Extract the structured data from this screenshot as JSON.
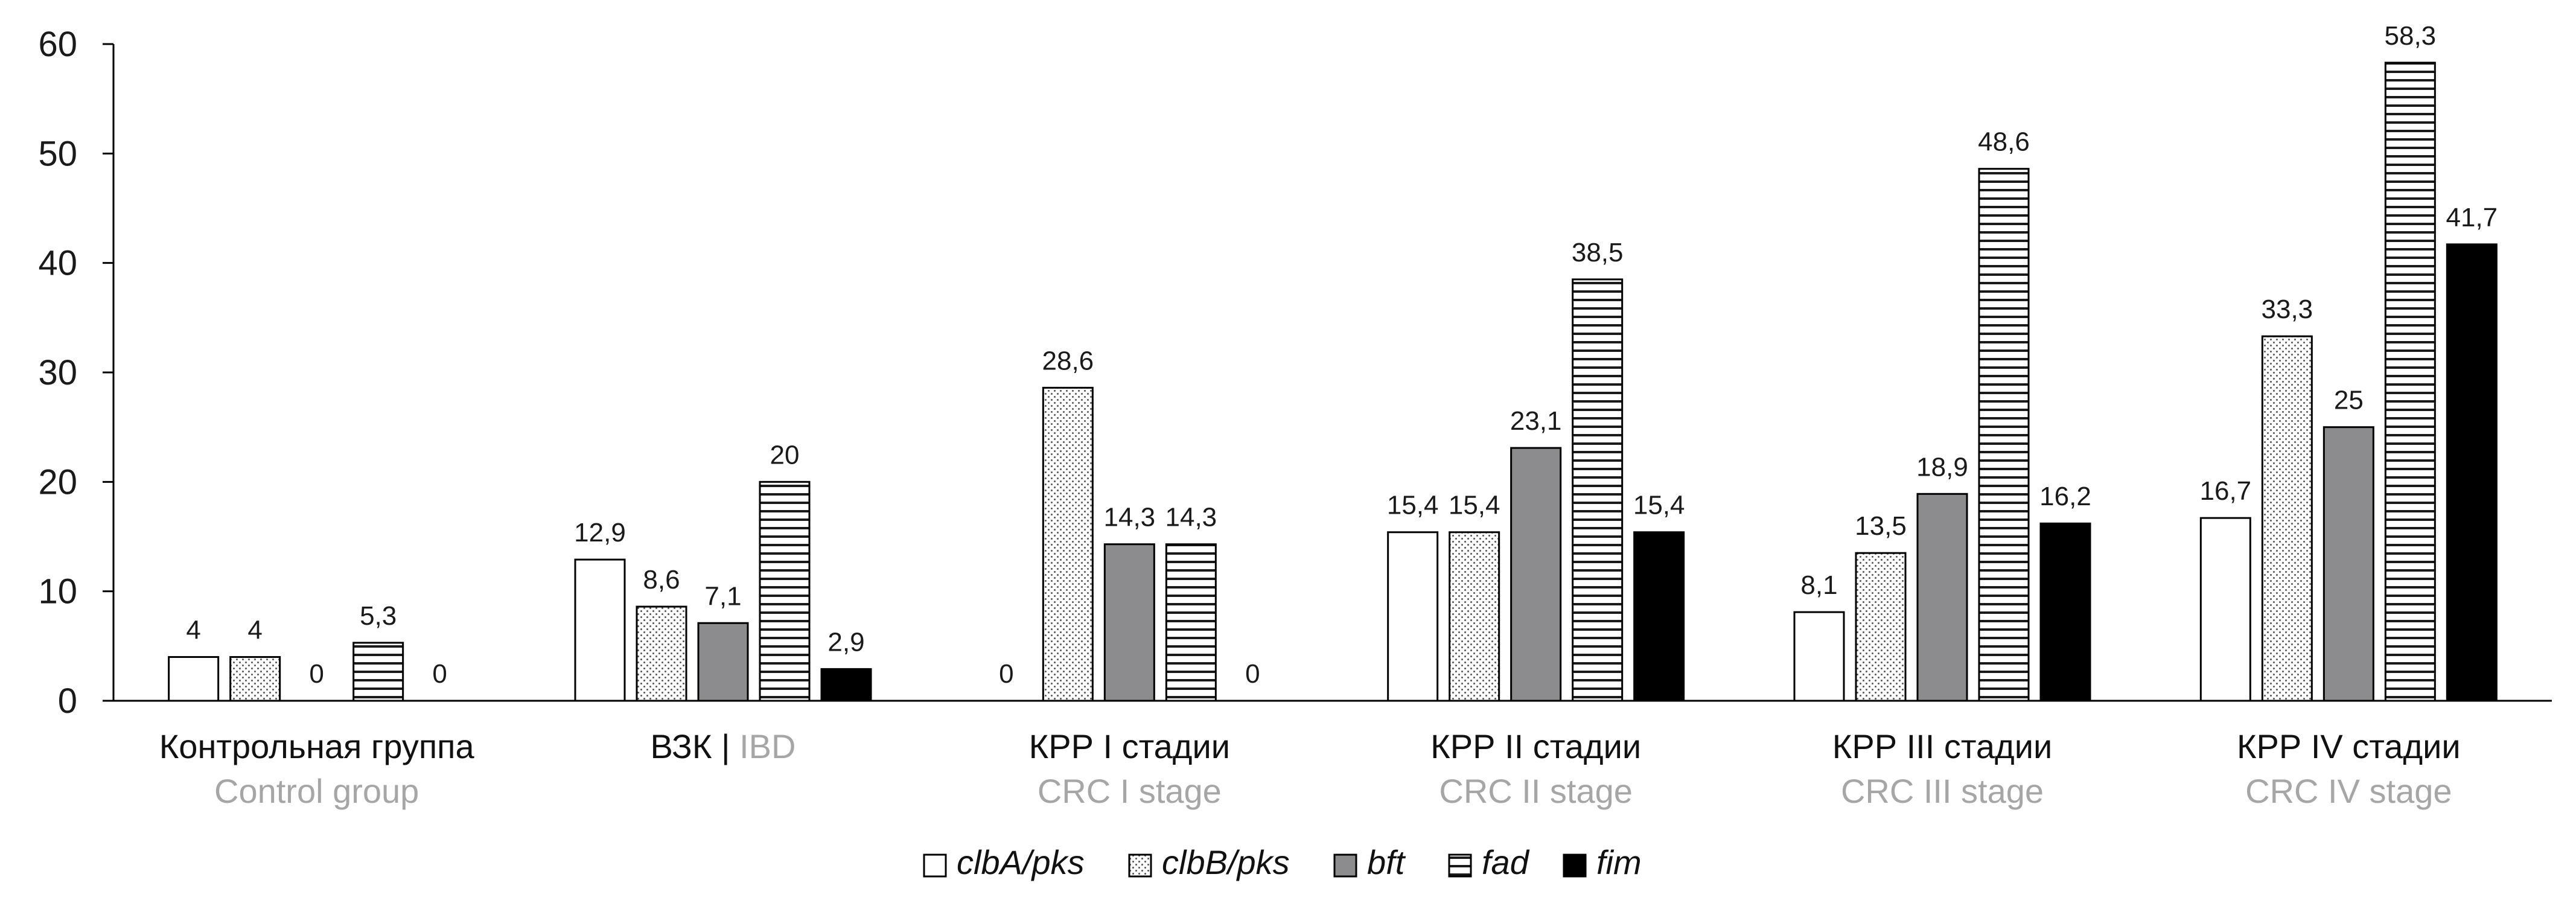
{
  "chart_data": {
    "type": "bar",
    "categories": [
      {
        "ru": "Контрольная группа",
        "en": "Control group"
      },
      {
        "ru": "ВЗК | ",
        "en": "IBD"
      },
      {
        "ru": "КРР I стадии",
        "en": "CRC I stage"
      },
      {
        "ru": "КРР II стадии",
        "en": "CRC II stage"
      },
      {
        "ru": "КРР III стадии",
        "en": "CRC III stage"
      },
      {
        "ru": "КРР IV стадии",
        "en": "CRC IV stage"
      }
    ],
    "series": [
      {
        "name": "clbA/pks",
        "pattern": "white",
        "values": [
          4,
          12.9,
          0,
          15.4,
          8.1,
          16.7
        ],
        "labels": [
          "4",
          "12,9",
          "0",
          "15,4",
          "8,1",
          "16,7"
        ]
      },
      {
        "name": "clbB/pks",
        "pattern": "dotted",
        "values": [
          4,
          8.6,
          28.6,
          15.4,
          13.5,
          33.3
        ],
        "labels": [
          "4",
          "8,6",
          "28,6",
          "15,4",
          "13,5",
          "33,3"
        ]
      },
      {
        "name": "bft",
        "pattern": "gray",
        "values": [
          0,
          7.1,
          14.3,
          23.1,
          18.9,
          25
        ],
        "labels": [
          "0",
          "7,1",
          "14,3",
          "23,1",
          "18,9",
          "25"
        ]
      },
      {
        "name": "fad",
        "pattern": "horizontal-lines",
        "values": [
          5.3,
          20,
          14.3,
          38.5,
          48.6,
          58.3
        ],
        "labels": [
          "5,3",
          "20",
          "14,3",
          "38,5",
          "48,6",
          "58,3"
        ]
      },
      {
        "name": "fim",
        "pattern": "black",
        "values": [
          0,
          2.9,
          0,
          15.4,
          16.2,
          41.7
        ],
        "labels": [
          "0",
          "2,9",
          "0",
          "15,4",
          "16,2",
          "41,7"
        ]
      }
    ],
    "yticks": [
      "0",
      "10",
      "20",
      "30",
      "40",
      "50",
      "60"
    ],
    "ylim": [
      0,
      60
    ],
    "grid": false,
    "legend_position": "bottom",
    "colors": {
      "outline": "#000000",
      "gray": "#8c8c8e",
      "black": "#000000",
      "white": "#ffffff",
      "en_text": "#a6a6a6"
    }
  }
}
